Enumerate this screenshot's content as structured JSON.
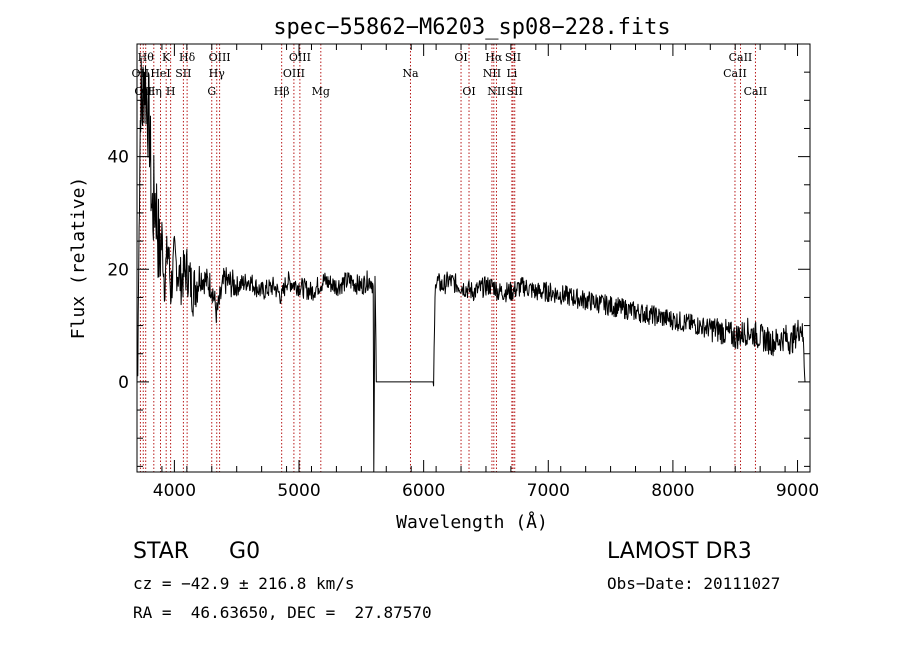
{
  "chart_data": {
    "type": "line",
    "title": "spec−55862−M6203_sp08−228.fits",
    "xlabel": "Wavelength (Å)",
    "ylabel": "Flux (relative)",
    "xlim": [
      3700,
      9100
    ],
    "ylim": [
      -16,
      60
    ],
    "x_ticks": [
      4000,
      5000,
      6000,
      7000,
      8000,
      9000
    ],
    "x_tick_labels": [
      "4000",
      "5000",
      "6000",
      "7000",
      "8000",
      "9000"
    ],
    "y_ticks": [
      0,
      20,
      40
    ],
    "y_tick_labels": [
      "0",
      "20",
      "40"
    ],
    "series": [
      {
        "name": "flux",
        "x": [
          3700,
          3710,
          3720,
          3730,
          3740,
          3760,
          3780,
          3800,
          3820,
          3850,
          3880,
          3900,
          3920,
          3950,
          3970,
          4000,
          4050,
          4100,
          4150,
          4200,
          4300,
          4340,
          4400,
          4500,
          4600,
          4700,
          4800,
          4861,
          4900,
          5000,
          5100,
          5200,
          5300,
          5400,
          5500,
          5550,
          5580,
          5595,
          5600,
          5610,
          5620,
          5800,
          5900,
          6000,
          6080,
          6095,
          6100,
          6150,
          6200,
          6300,
          6400,
          6500,
          6563,
          6600,
          6700,
          6800,
          6900,
          7000,
          7200,
          7400,
          7600,
          7800,
          8000,
          8200,
          8400,
          8500,
          8600,
          8700,
          8800,
          8900,
          8950,
          9000,
          9030,
          9050,
          9060
        ],
        "y": [
          0,
          12,
          35,
          52,
          48,
          55,
          50,
          45,
          30,
          33,
          22,
          26,
          18,
          24,
          16,
          22,
          18,
          20,
          16,
          19,
          17,
          12,
          18,
          17,
          18,
          16,
          17,
          15,
          18,
          17,
          16,
          18,
          17,
          18,
          17,
          18,
          18,
          17,
          -16,
          18,
          0,
          0,
          0,
          0,
          0,
          19,
          18,
          17,
          18,
          17,
          16,
          17,
          17,
          16,
          16,
          17,
          16,
          16,
          15,
          14,
          13,
          12,
          11,
          10,
          9,
          8,
          9,
          8,
          7,
          8,
          7,
          9,
          10,
          6,
          0
        ]
      }
    ],
    "line_annotations": [
      {
        "wavelength": 3727,
        "label": "OII",
        "row": 2
      },
      {
        "wavelength": 3750,
        "label": "OII",
        "row": 3
      },
      {
        "wavelength": 3770,
        "label": "Hθ",
        "row": 1
      },
      {
        "wavelength": 3835,
        "label": "Hη",
        "row": 3
      },
      {
        "wavelength": 3889,
        "label": "HeI",
        "row": 2
      },
      {
        "wavelength": 3934,
        "label": "K",
        "row": 1
      },
      {
        "wavelength": 3970,
        "label": "H",
        "row": 3
      },
      {
        "wavelength": 4072,
        "label": "SII",
        "row": 2
      },
      {
        "wavelength": 4102,
        "label": "Hδ",
        "row": 1
      },
      {
        "wavelength": 4300,
        "label": "G",
        "row": 3
      },
      {
        "wavelength": 4340,
        "label": "Hγ",
        "row": 2
      },
      {
        "wavelength": 4363,
        "label": "OIII",
        "row": 1
      },
      {
        "wavelength": 4861,
        "label": "Hβ",
        "row": 3
      },
      {
        "wavelength": 4959,
        "label": "OIII",
        "row": 2
      },
      {
        "wavelength": 5007,
        "label": "OIII",
        "row": 1
      },
      {
        "wavelength": 5175,
        "label": "Mg",
        "row": 3
      },
      {
        "wavelength": 5894,
        "label": "Na",
        "row": 2
      },
      {
        "wavelength": 6300,
        "label": "OI",
        "row": 1
      },
      {
        "wavelength": 6364,
        "label": "OI",
        "row": 3
      },
      {
        "wavelength": 6548,
        "label": "NII",
        "row": 2
      },
      {
        "wavelength": 6563,
        "label": "Hα",
        "row": 1
      },
      {
        "wavelength": 6584,
        "label": "NII",
        "row": 3
      },
      {
        "wavelength": 6708,
        "label": "Li",
        "row": 2
      },
      {
        "wavelength": 6717,
        "label": "SII",
        "row": 1
      },
      {
        "wavelength": 6731,
        "label": "SII",
        "row": 3
      },
      {
        "wavelength": 8498,
        "label": "CaII",
        "row": 2
      },
      {
        "wavelength": 8542,
        "label": "CaII",
        "row": 1
      },
      {
        "wavelength": 8662,
        "label": "CaII",
        "row": 3
      }
    ]
  },
  "info": {
    "class_label": "STAR",
    "subclass": "G0",
    "cz": "cz = −42.9 ± 216.8 km/s",
    "coords": "RA =  46.63650, DEC =  27.87570",
    "survey": "LAMOST DR3",
    "obs_date": "Obs−Date: 20111027"
  },
  "colors": {
    "spectrum": "#000000",
    "line_markers": "#b00000"
  }
}
